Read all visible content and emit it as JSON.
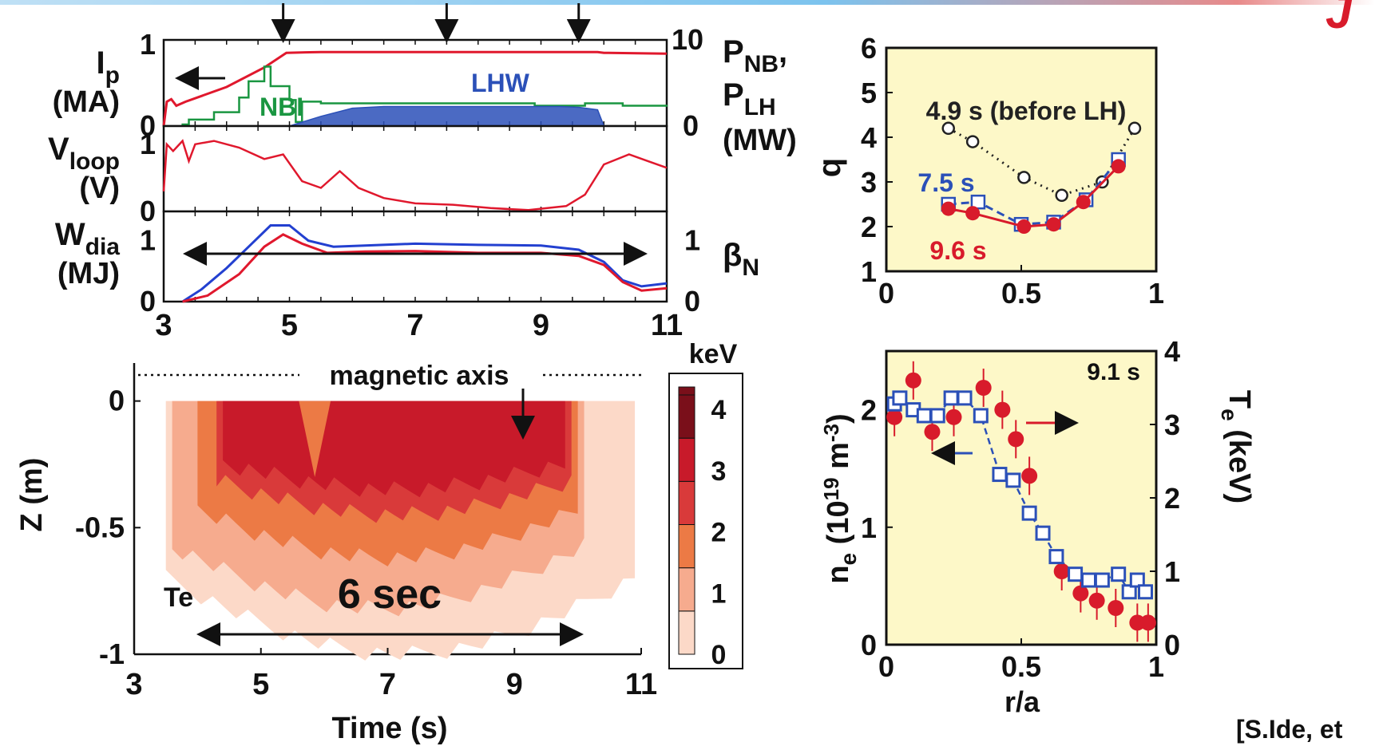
{
  "colors": {
    "ip_red": "#e0182d",
    "nbi_green": "#1a9641",
    "lhw_blue": "#2b50b8",
    "wdia_blue": "#2340d0",
    "bn_red": "#e0182d",
    "panel_yellow": "#fdf8c8",
    "q_before": "#222222",
    "q_75": "#2b50b8",
    "q_96": "#d81b2b",
    "ne_red": "#d81b2b",
    "te_blue": "#2b50b8",
    "logo_red": "#d81b2b"
  },
  "labels": {
    "top_right_fragment": "J",
    "arrows_time_note": "",
    "citation": "[S.Ide, et"
  },
  "chart_data": [
    {
      "id": "time-traces",
      "type": "line",
      "x_ticks": [
        "3",
        "5",
        "7",
        "9",
        "11"
      ],
      "xlim": [
        3,
        11
      ],
      "timing_arrows_s": [
        4.9,
        7.5,
        9.6
      ],
      "panels": [
        {
          "id": "ip-power",
          "left_label_main": "I",
          "left_label_sub": "p",
          "left_label_unit": "(MA)",
          "left_ticks": [
            "0",
            "1"
          ],
          "left_ylim": [
            0,
            1
          ],
          "right_label_1": "P",
          "right_label_1_sub": "NB",
          "right_label_1_tail": ",",
          "right_label_2": "P",
          "right_label_2_sub": "LH",
          "right_label_3": "(MW)",
          "right_ticks": [
            "0",
            "10"
          ],
          "right_ylim": [
            0,
            10
          ],
          "annotations": {
            "nbi": "NBI",
            "lhw": "LHW"
          },
          "series": [
            {
              "name": "",
              "axis": "left",
              "points": [
                [
                  3.0,
                  0.0
                ],
                [
                  3.05,
                  0.3
                ],
                [
                  3.12,
                  0.33
                ],
                [
                  3.2,
                  0.25
                ],
                [
                  3.35,
                  0.3
                ],
                [
                  4.0,
                  0.48
                ],
                [
                  4.6,
                  0.72
                ],
                [
                  4.95,
                  0.9
                ],
                [
                  5.5,
                  0.91
                ],
                [
                  8,
                  0.91
                ],
                [
                  9.9,
                  0.91
                ],
                [
                  10.0,
                  0.9
                ],
                [
                  11,
                  0.89
                ]
              ]
            },
            {
              "name": "NBI",
              "axis": "right",
              "steps": [
                [
                  3.3,
                  0.2
                ],
                [
                  3.4,
                  0.8
                ],
                [
                  3.8,
                  1.7
                ],
                [
                  4.2,
                  3.5
                ],
                [
                  4.35,
                  5.5
                ],
                [
                  4.6,
                  7.3
                ],
                [
                  4.7,
                  4.9
                ],
                [
                  5.0,
                  3.2
                ],
                [
                  5.1,
                  0.5
                ],
                [
                  5.2,
                  3.0
                ],
                [
                  5.5,
                  2.8
                ],
                [
                  6.0,
                  2.8
                ],
                [
                  8.6,
                  2.8
                ],
                [
                  8.9,
                  2.5
                ],
                [
                  9.7,
                  2.8
                ],
                [
                  10.3,
                  2.5
                ],
                [
                  11,
                  2.6
                ]
              ]
            },
            {
              "name": "LHW",
              "axis": "right",
              "fill": true,
              "points": [
                [
                  5.0,
                  0
                ],
                [
                  5.5,
                  1.2
                ],
                [
                  6.0,
                  2.2
                ],
                [
                  6.5,
                  2.4
                ],
                [
                  7.5,
                  2.4
                ],
                [
                  8.5,
                  2.4
                ],
                [
                  9.3,
                  2.4
                ],
                [
                  9.6,
                  2.3
                ],
                [
                  9.9,
                  2.0
                ],
                [
                  10.0,
                  0
                ]
              ]
            }
          ]
        },
        {
          "id": "vloop",
          "left_label_main": "V",
          "left_label_sub": "loop",
          "left_label_unit": "(V)",
          "left_ticks": [
            "0",
            "1"
          ],
          "left_ylim": [
            0,
            1.2
          ],
          "series": [
            {
              "name": "",
              "points": [
                [
                  3.0,
                  0.3
                ],
                [
                  3.05,
                  1.0
                ],
                [
                  3.15,
                  0.9
                ],
                [
                  3.3,
                  1.05
                ],
                [
                  3.4,
                  0.75
                ],
                [
                  3.5,
                  1.0
                ],
                [
                  3.8,
                  1.05
                ],
                [
                  4.2,
                  0.95
                ],
                [
                  4.6,
                  0.78
                ],
                [
                  4.9,
                  0.85
                ],
                [
                  5.2,
                  0.45
                ],
                [
                  5.5,
                  0.35
                ],
                [
                  5.8,
                  0.6
                ],
                [
                  6.1,
                  0.35
                ],
                [
                  6.5,
                  0.2
                ],
                [
                  7.0,
                  0.12
                ],
                [
                  7.6,
                  0.1
                ],
                [
                  8.2,
                  0.05
                ],
                [
                  8.8,
                  0.02
                ],
                [
                  9.4,
                  0.08
                ],
                [
                  9.7,
                  0.25
                ],
                [
                  10.0,
                  0.7
                ],
                [
                  10.4,
                  0.85
                ],
                [
                  10.7,
                  0.75
                ],
                [
                  11.0,
                  0.65
                ]
              ]
            }
          ]
        },
        {
          "id": "wdia-betan",
          "left_label_main": "W",
          "left_label_sub": "dia",
          "left_label_unit": "(MJ)",
          "left_ticks": [
            "0",
            "1"
          ],
          "left_ylim": [
            0,
            1.4
          ],
          "right_label_1": "β",
          "right_label_1_sub": "N",
          "right_ticks": [
            "0",
            "1"
          ],
          "right_ylim": [
            0,
            1.4
          ],
          "series": [
            {
              "name": "",
              "axis": "left",
              "points": [
                [
                  3.3,
                  0.0
                ],
                [
                  3.6,
                  0.2
                ],
                [
                  4.0,
                  0.55
                ],
                [
                  4.4,
                  0.95
                ],
                [
                  4.7,
                  1.25
                ],
                [
                  5.0,
                  1.25
                ],
                [
                  5.3,
                  1.0
                ],
                [
                  5.7,
                  0.9
                ],
                [
                  6.2,
                  0.92
                ],
                [
                  7.0,
                  0.95
                ],
                [
                  8.0,
                  0.93
                ],
                [
                  9.0,
                  0.92
                ],
                [
                  9.6,
                  0.85
                ],
                [
                  10.0,
                  0.65
                ],
                [
                  10.3,
                  0.35
                ],
                [
                  10.6,
                  0.25
                ],
                [
                  11.0,
                  0.3
                ]
              ]
            },
            {
              "name": "",
              "axis": "right",
              "points": [
                [
                  3.3,
                  0.0
                ],
                [
                  3.7,
                  0.1
                ],
                [
                  4.2,
                  0.45
                ],
                [
                  4.6,
                  0.9
                ],
                [
                  4.9,
                  1.1
                ],
                [
                  5.2,
                  0.95
                ],
                [
                  5.6,
                  0.8
                ],
                [
                  6.2,
                  0.82
                ],
                [
                  7.0,
                  0.83
                ],
                [
                  8.0,
                  0.8
                ],
                [
                  9.0,
                  0.8
                ],
                [
                  9.6,
                  0.75
                ],
                [
                  10.0,
                  0.6
                ],
                [
                  10.3,
                  0.32
                ],
                [
                  10.6,
                  0.18
                ],
                [
                  11.0,
                  0.22
                ]
              ]
            }
          ]
        }
      ]
    },
    {
      "id": "te-contour",
      "type": "heatmap",
      "xlabel": "Time (s)",
      "ylabel": "Z (m)",
      "x_ticks": [
        "3",
        "5",
        "7",
        "9",
        "11"
      ],
      "y_ticks": [
        "0",
        "-0.5",
        "-1"
      ],
      "xlim": [
        3,
        11
      ],
      "ylim": [
        -1,
        0.15
      ],
      "annotations": {
        "axis_label": "magnetic axis",
        "species": "Te",
        "duration": "6 sec"
      },
      "colorbar": {
        "unit": "keV",
        "ticks": [
          "4",
          "3",
          "2",
          "1",
          "0"
        ],
        "colors": [
          "#ffffff",
          "#fcd9c8",
          "#f6ab8e",
          "#ec7a45",
          "#d93a3a",
          "#c81a2a",
          "#7a0f1a"
        ]
      },
      "levels_z_extent_keV": [
        {
          "level": 0,
          "t_start": 3.5,
          "t_end": 10.9,
          "z_bottom": -1.0
        },
        {
          "level": 1,
          "t_start": 3.6,
          "t_end": 10.1,
          "z_bottom": -0.82
        },
        {
          "level": 2,
          "t_start": 4.0,
          "t_end": 10.0,
          "z_bottom": -0.62
        },
        {
          "level": 3,
          "t_start": 4.3,
          "t_end": 9.9,
          "z_bottom": -0.45
        },
        {
          "level": 4,
          "t_start": 4.4,
          "t_end": 9.8,
          "z_bottom": -0.35
        }
      ]
    },
    {
      "id": "q-profile",
      "type": "scatter",
      "ylabel": "q",
      "x_ticks": [
        "0",
        "0.5",
        "1"
      ],
      "y_ticks": [
        "1",
        "2",
        "3",
        "4",
        "5",
        "6"
      ],
      "xlim": [
        0,
        1
      ],
      "ylim": [
        1,
        6
      ],
      "series": [
        {
          "name": "4.9 s (before LH)",
          "marker": "open-circle",
          "line": "dotted",
          "x": [
            0.23,
            0.32,
            0.51,
            0.65,
            0.8,
            0.92
          ],
          "y": [
            4.2,
            3.9,
            3.1,
            2.7,
            3.0,
            4.2
          ]
        },
        {
          "name": "7.5 s",
          "marker": "open-square",
          "line": "dashed",
          "x": [
            0.23,
            0.34,
            0.5,
            0.62,
            0.74,
            0.86
          ],
          "y": [
            2.5,
            2.55,
            2.05,
            2.1,
            2.6,
            3.5
          ]
        },
        {
          "name": "9.6 s",
          "marker": "filled-circle",
          "line": "solid",
          "x": [
            0.23,
            0.32,
            0.51,
            0.62,
            0.73,
            0.86
          ],
          "y": [
            2.4,
            2.3,
            2.0,
            2.05,
            2.55,
            3.35
          ]
        }
      ]
    },
    {
      "id": "ne-te-profile",
      "type": "scatter",
      "xlabel": "r/a",
      "ylabel_left": "n",
      "ylabel_left_sub": "e",
      "ylabel_left_unit": "(10",
      "ylabel_left_exp": "19",
      "ylabel_left_unit2": " m",
      "ylabel_left_exp2": "-3",
      "ylabel_left_close": ")",
      "ylabel_right": "T",
      "ylabel_right_sub": "e",
      "ylabel_right_unit": "(keV)",
      "time_label": "9.1 s",
      "x_ticks": [
        "0",
        "0.5",
        "1"
      ],
      "y_left_ticks": [
        "0",
        "1",
        "2"
      ],
      "y_right_ticks": [
        "0",
        "1",
        "2",
        "3",
        "4"
      ],
      "xlim": [
        0,
        1
      ],
      "ylim_left": [
        0,
        2.5
      ],
      "ylim_right": [
        0,
        4
      ],
      "series": [
        {
          "name": "",
          "axis": "right",
          "marker": "filled-circle",
          "x": [
            0.03,
            0.1,
            0.17,
            0.25,
            0.36,
            0.43,
            0.48,
            0.53,
            0.65,
            0.72,
            0.78,
            0.85,
            0.93,
            0.97
          ],
          "y": [
            3.1,
            3.6,
            2.9,
            3.1,
            3.5,
            3.2,
            2.8,
            2.3,
            1.0,
            0.7,
            0.6,
            0.5,
            0.3,
            0.3
          ]
        },
        {
          "name": "",
          "axis": "left",
          "marker": "open-square",
          "x": [
            0.03,
            0.05,
            0.1,
            0.14,
            0.19,
            0.24,
            0.29,
            0.35,
            0.42,
            0.47,
            0.53,
            0.58,
            0.63,
            0.7,
            0.75,
            0.8,
            0.86,
            0.9,
            0.93,
            0.96
          ],
          "y": [
            2.05,
            2.1,
            2.0,
            1.95,
            1.95,
            2.1,
            2.1,
            1.95,
            1.45,
            1.4,
            1.12,
            0.95,
            0.75,
            0.6,
            0.55,
            0.55,
            0.6,
            0.45,
            0.55,
            0.45
          ]
        }
      ]
    }
  ]
}
